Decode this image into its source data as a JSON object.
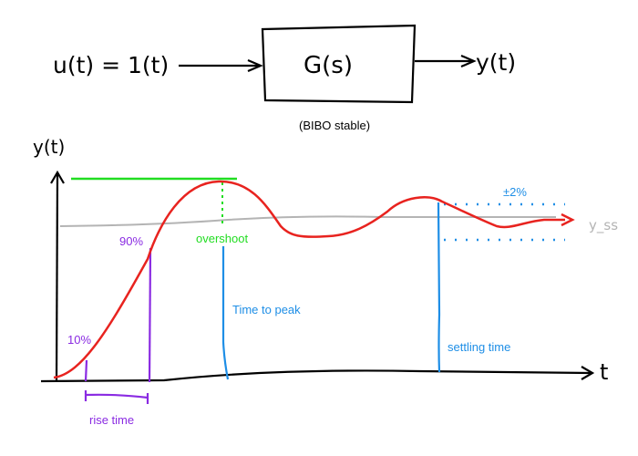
{
  "block_diagram": {
    "input_label": "u(t) = 1(t)",
    "block_label": "G(s)",
    "output_label": "y(t)",
    "block_note": "(BIBO stable)"
  },
  "step_response": {
    "y_axis_label": "y(t)",
    "x_axis_label": "t",
    "steady_state_label": "y_ss",
    "annotations": {
      "ten_percent": "10%",
      "ninety_percent": "90%",
      "overshoot": "overshoot",
      "time_to_peak": "Time to peak",
      "rise_time": "rise time",
      "tolerance_band": "±2%",
      "settling_time": "settling time"
    }
  },
  "colors": {
    "ink": "#000000",
    "response": "#e8231f",
    "steady_state": "#b4b4b4",
    "peak_line": "#22dd22",
    "rise_markers": "#8a2be2",
    "time_markers": "#1e8ee6"
  }
}
